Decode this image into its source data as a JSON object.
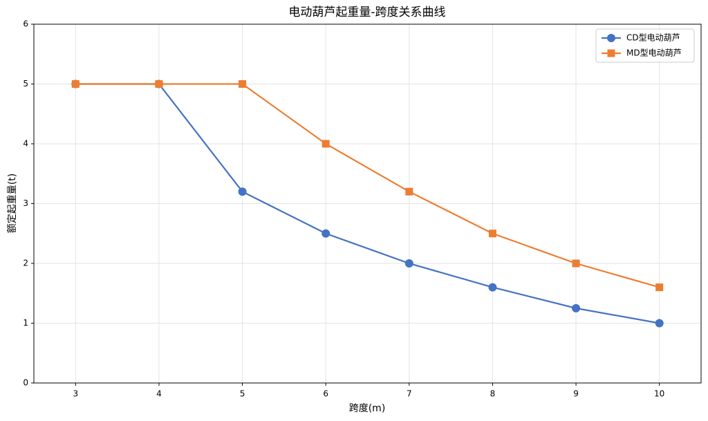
{
  "chart_data": {
    "type": "line",
    "title": "电动葫芦起重量-跨度关系曲线",
    "x_label": "跨度(m)",
    "y_label": "额定起重量(t)",
    "x": [
      3,
      4,
      5,
      6,
      7,
      8,
      9,
      10
    ],
    "series": [
      {
        "name": "CD型电动葫芦",
        "color": "#4472c4",
        "marker": "circle",
        "values": [
          5,
          5,
          3.2,
          2.5,
          2,
          1.6,
          1.25,
          1
        ]
      },
      {
        "name": "MD型电动葫芦",
        "color": "#ed7d31",
        "marker": "square",
        "values": [
          5,
          5,
          5,
          4,
          3.2,
          2.5,
          2,
          1.6
        ]
      }
    ],
    "xlim": [
      2.5,
      10.5
    ],
    "ylim": [
      0,
      6
    ],
    "xticks": [
      3,
      4,
      5,
      6,
      7,
      8,
      9,
      10
    ],
    "yticks": [
      0,
      1,
      2,
      3,
      4,
      5,
      6
    ],
    "grid": true,
    "legend": "upper-right"
  }
}
